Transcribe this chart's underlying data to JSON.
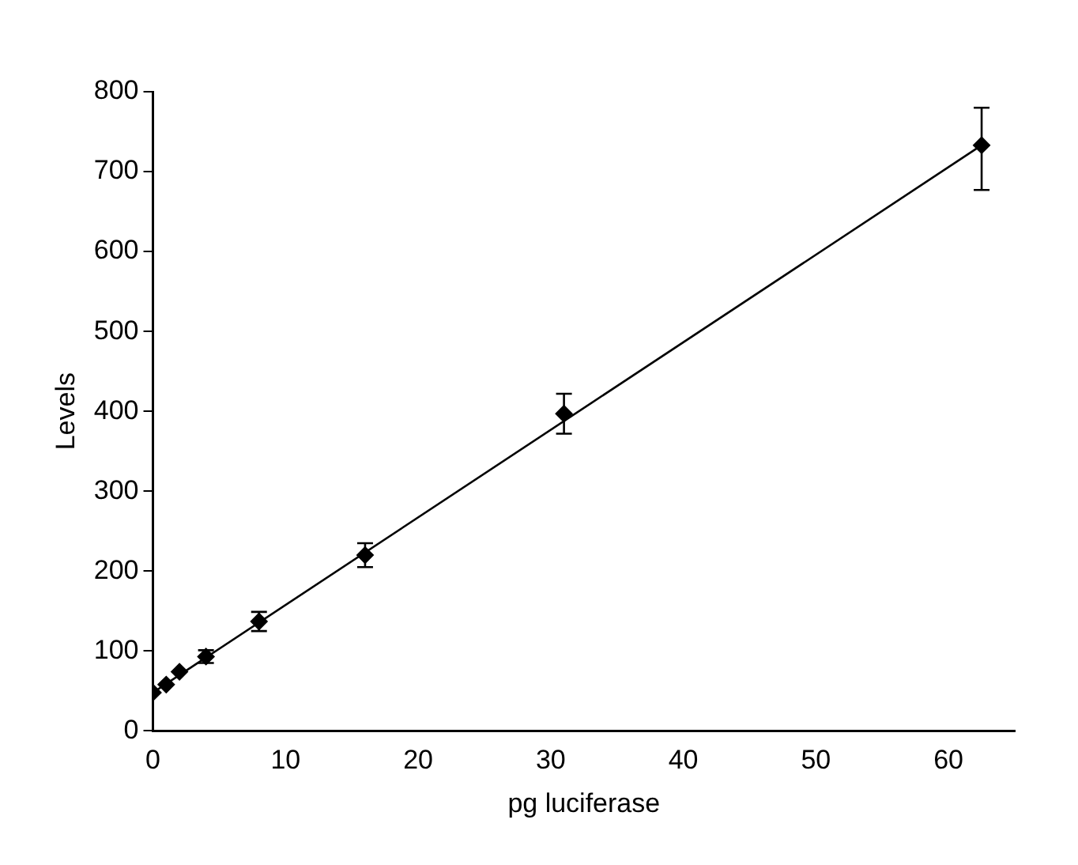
{
  "chart_data": {
    "type": "scatter",
    "xlabel": "pg luciferase",
    "ylabel": "Levels",
    "xlim": [
      0,
      65
    ],
    "xticks": [
      0,
      10,
      20,
      30,
      40,
      50,
      60
    ],
    "ylim": [
      0,
      800
    ],
    "yticks": [
      0,
      100,
      200,
      300,
      400,
      500,
      600,
      700,
      800
    ],
    "grid": false,
    "legend": false,
    "marker": "diamond",
    "series": [
      {
        "color": "#000000",
        "x": [
          0,
          1,
          2,
          4,
          8,
          16,
          31,
          62.5
        ],
        "values": [
          48,
          58,
          74,
          93,
          137,
          220,
          397,
          733
        ],
        "errors": [
          null,
          null,
          null,
          8,
          12,
          15,
          25,
          [
            677,
            780
          ]
        ]
      },
      {
        "type": "line",
        "color": "#000000",
        "marker": "none",
        "x": [
          0,
          62.5
        ],
        "values": [
          48,
          733
        ]
      }
    ]
  }
}
